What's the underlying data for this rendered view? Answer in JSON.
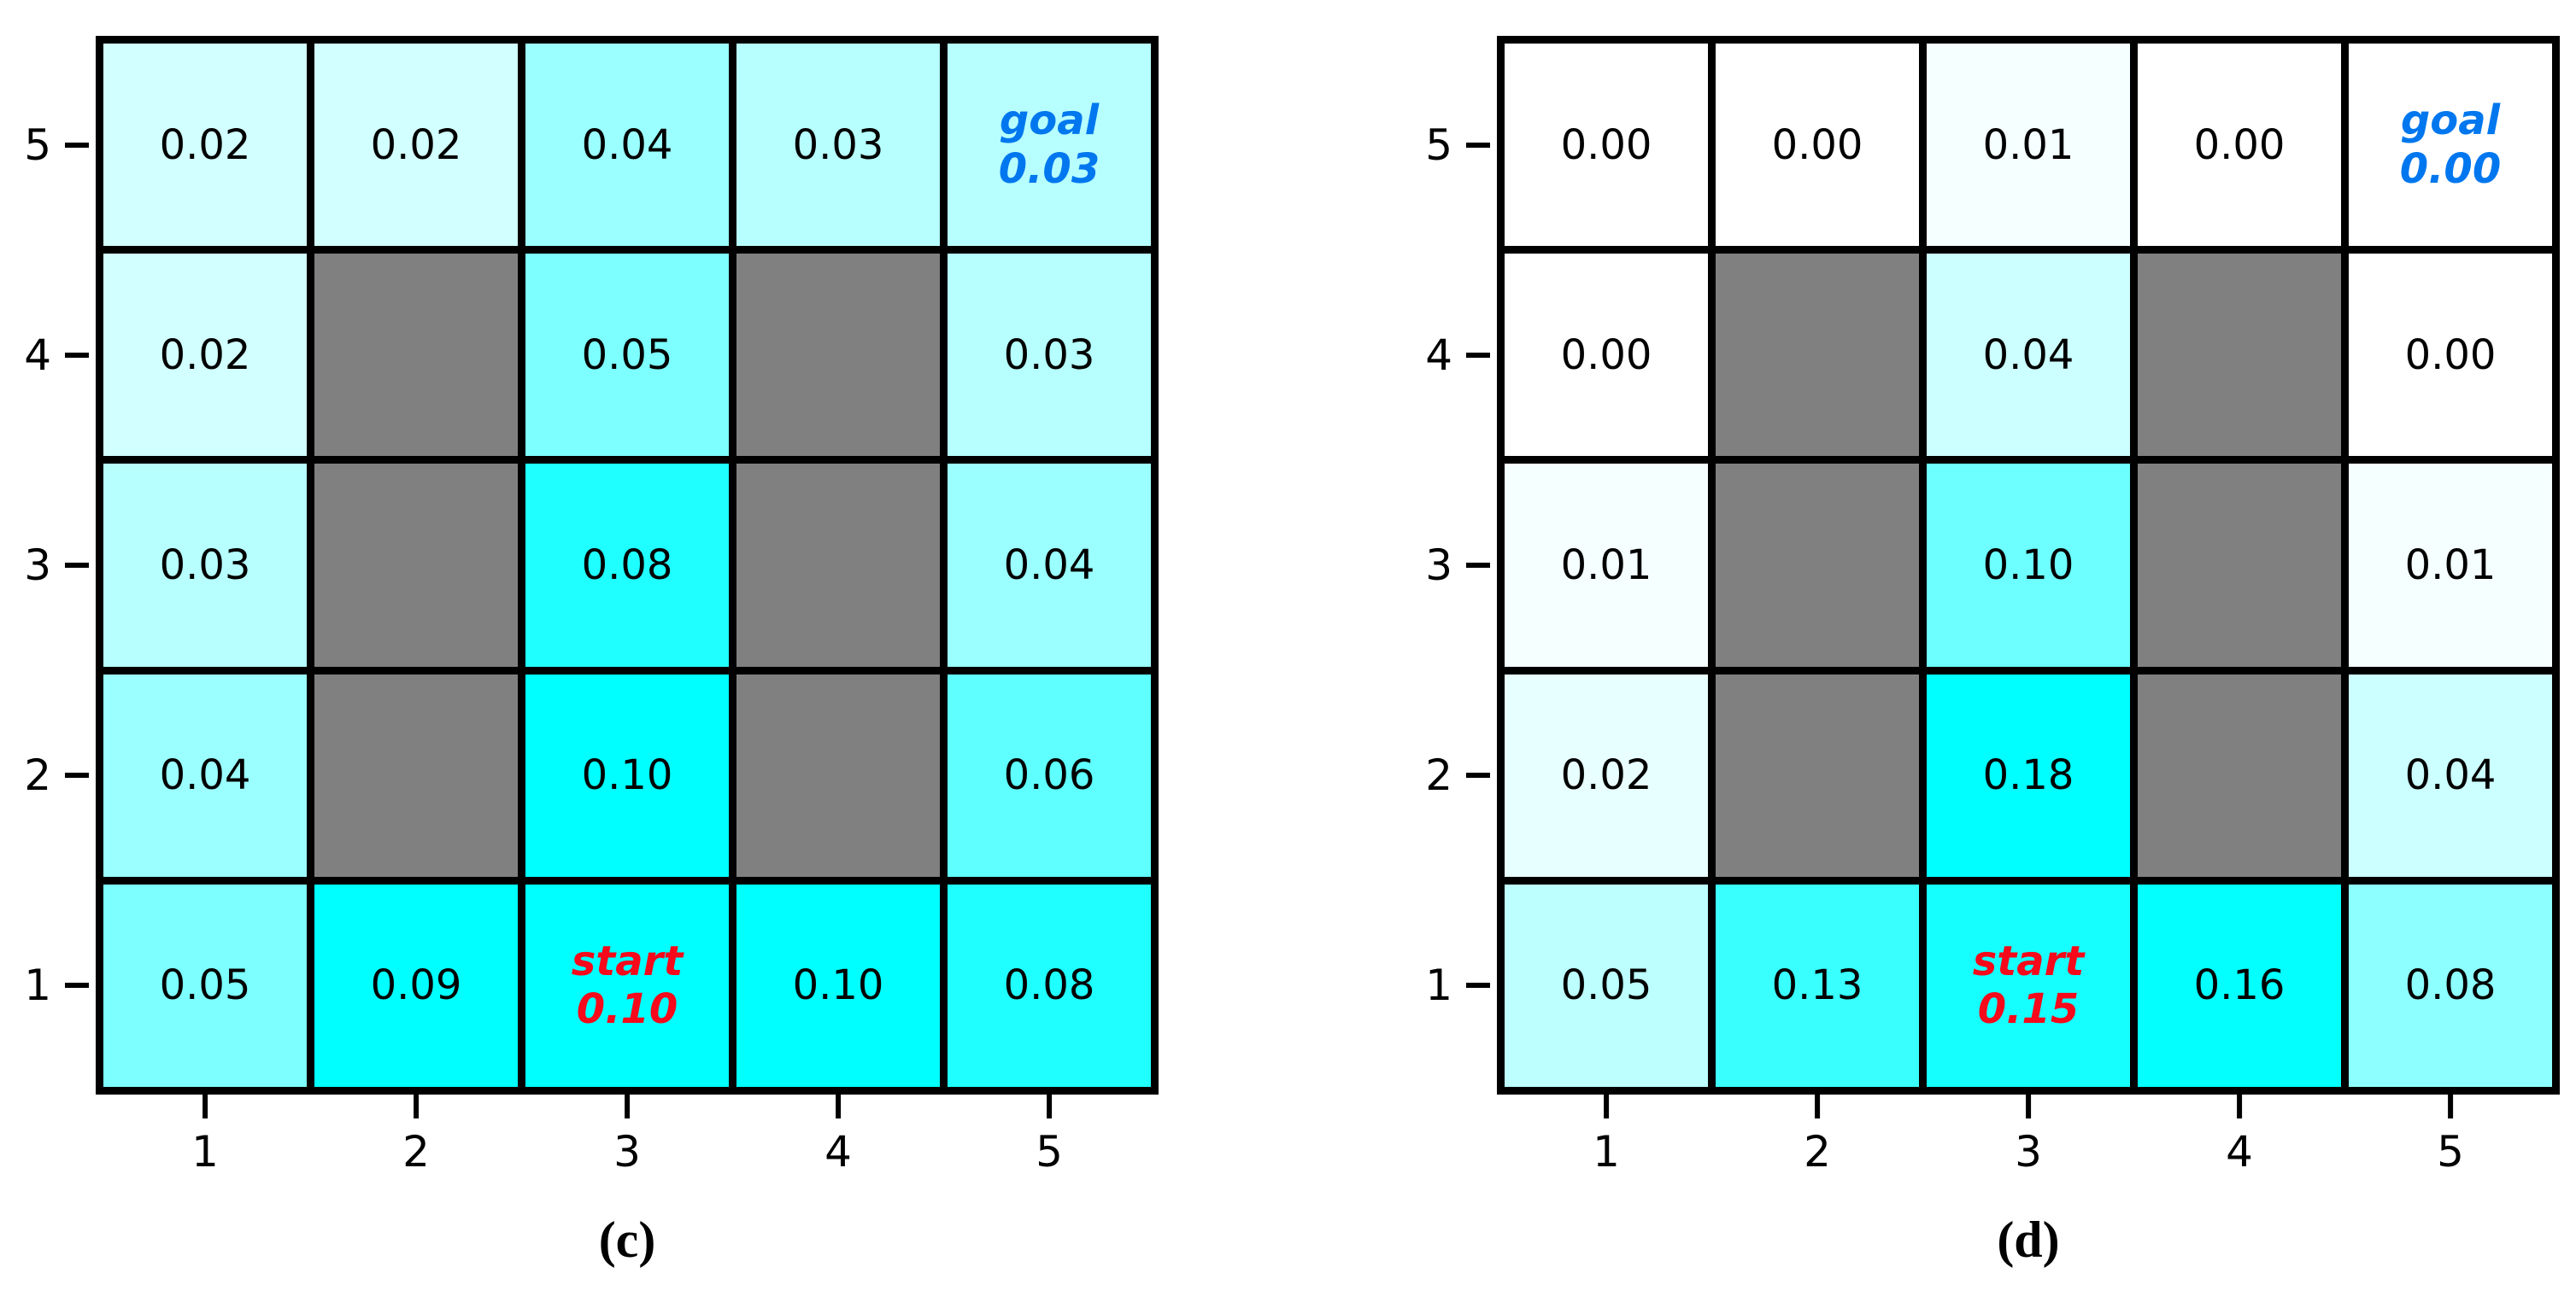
{
  "colors": {
    "wall_gray": "#808080",
    "grid_line_black": "#000000",
    "cell_min_white": "#ffffff",
    "cell_max_cyan": "#00ffff",
    "value_text_black": "#000000",
    "goal_text_blue": "#0077ee",
    "start_text_red": "#f5091a"
  },
  "chart_data": [
    {
      "type": "heatmap",
      "caption": "(c)",
      "xlabel_ticks": [
        "1",
        "2",
        "3",
        "4",
        "5"
      ],
      "ylabel_ticks": [
        "5",
        "4",
        "3",
        "2",
        "1"
      ],
      "vmax": 0.1,
      "colormap": "white-to-cyan, obstacle cells gray",
      "goal": {
        "x": 5,
        "y": 5,
        "label": "goal",
        "value": "0.03"
      },
      "start": {
        "x": 3,
        "y": 1,
        "label": "start",
        "value": "0.10"
      },
      "rows_top_to_bottom": [
        [
          {
            "v": "0.02"
          },
          {
            "v": "0.02"
          },
          {
            "v": "0.04"
          },
          {
            "v": "0.03"
          },
          {
            "v": "0.03",
            "special": "goal",
            "label": "goal"
          }
        ],
        [
          {
            "v": "0.02"
          },
          {
            "wall": true
          },
          {
            "v": "0.05"
          },
          {
            "wall": true
          },
          {
            "v": "0.03"
          }
        ],
        [
          {
            "v": "0.03"
          },
          {
            "wall": true
          },
          {
            "v": "0.08"
          },
          {
            "wall": true
          },
          {
            "v": "0.04"
          }
        ],
        [
          {
            "v": "0.04"
          },
          {
            "wall": true
          },
          {
            "v": "0.10"
          },
          {
            "wall": true
          },
          {
            "v": "0.06"
          }
        ],
        [
          {
            "v": "0.05"
          },
          {
            "v": "0.09"
          },
          {
            "v": "0.10",
            "special": "start",
            "label": "start"
          },
          {
            "v": "0.10"
          },
          {
            "v": "0.08"
          }
        ]
      ]
    },
    {
      "type": "heatmap",
      "caption": "(d)",
      "xlabel_ticks": [
        "1",
        "2",
        "3",
        "4",
        "5"
      ],
      "ylabel_ticks": [
        "5",
        "4",
        "3",
        "2",
        "1"
      ],
      "vmax": 0.18,
      "colormap": "white-to-cyan, obstacle cells gray",
      "goal": {
        "x": 5,
        "y": 5,
        "label": "goal",
        "value": "0.00"
      },
      "start": {
        "x": 3,
        "y": 1,
        "label": "start",
        "value": "0.15"
      },
      "rows_top_to_bottom": [
        [
          {
            "v": "0.00"
          },
          {
            "v": "0.00"
          },
          {
            "v": "0.01"
          },
          {
            "v": "0.00"
          },
          {
            "v": "0.00",
            "special": "goal",
            "label": "goal"
          }
        ],
        [
          {
            "v": "0.00"
          },
          {
            "wall": true
          },
          {
            "v": "0.04"
          },
          {
            "wall": true
          },
          {
            "v": "0.00"
          }
        ],
        [
          {
            "v": "0.01"
          },
          {
            "wall": true
          },
          {
            "v": "0.10"
          },
          {
            "wall": true
          },
          {
            "v": "0.01"
          }
        ],
        [
          {
            "v": "0.02"
          },
          {
            "wall": true
          },
          {
            "v": "0.18"
          },
          {
            "wall": true
          },
          {
            "v": "0.04"
          }
        ],
        [
          {
            "v": "0.05"
          },
          {
            "v": "0.13"
          },
          {
            "v": "0.15",
            "special": "start",
            "label": "start"
          },
          {
            "v": "0.16"
          },
          {
            "v": "0.08"
          }
        ]
      ]
    }
  ]
}
